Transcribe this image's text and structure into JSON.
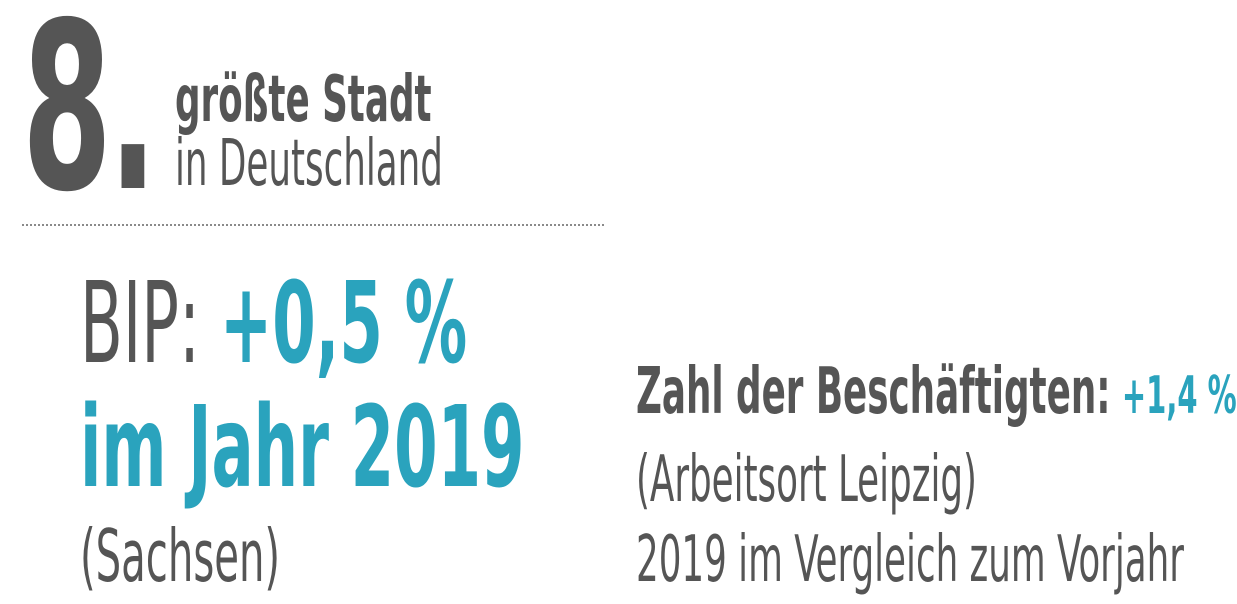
{
  "rank": {
    "number": "8.",
    "line1": "größte Stadt",
    "line2": "in Deutschland"
  },
  "gdp": {
    "label": "BIP:",
    "value": "+0,5 %",
    "year_line": "im Jahr 2019",
    "note": "(Sachsen)"
  },
  "employment": {
    "label": "Zahl der Beschäftigten:",
    "value": "+1,4 %",
    "line2": "(Arbeitsort Leipzig)",
    "line3": "2019 im Vergleich zum Vorjahr"
  },
  "colors": {
    "text_gray": "#555555",
    "accent_teal": "#2aa3bd"
  }
}
